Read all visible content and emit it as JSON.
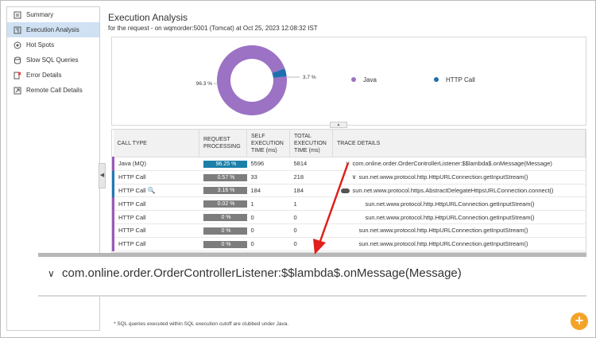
{
  "sidebar": {
    "items": [
      {
        "label": "Summary",
        "icon": "summary-icon",
        "active": false
      },
      {
        "label": "Execution Analysis",
        "icon": "execution-analysis-icon",
        "active": true
      },
      {
        "label": "Hot Spots",
        "icon": "hot-spots-icon",
        "active": false
      },
      {
        "label": "Slow SQL Queries",
        "icon": "database-icon",
        "active": false
      },
      {
        "label": "Error Details",
        "icon": "error-icon",
        "active": false
      },
      {
        "label": "Remote Call Details",
        "icon": "remote-call-icon",
        "active": false
      }
    ]
  },
  "header": {
    "title": "Execution Analysis",
    "subtitle": "for the request - on wqmorder:5001 (Tomcat) at Oct 25, 2023 12:08:32 IST"
  },
  "chart_data": {
    "type": "pie",
    "categories": [
      "Java",
      "HTTP Call"
    ],
    "values": [
      96.3,
      3.7
    ],
    "labels": [
      "96.3 %",
      "3.7 %"
    ],
    "colors": [
      "#9b72c4",
      "#1f6fae"
    ],
    "legend_position": "right"
  },
  "table": {
    "headers": [
      "CALL TYPE",
      "REQUEST PROCESSING",
      "SELF EXECUTION TIME (ms)",
      "TOTAL EXECUTION TIME (ms)",
      "TRACE DETAILS"
    ],
    "rows": [
      {
        "call_type": "Java (MQ)",
        "percent": "96.25 %",
        "self": "5596",
        "total": "5814",
        "trace": "com.online.order.OrderControllerListener:$$lambda$.onMessage(Message)",
        "indent": 0,
        "marker": "chevron"
      },
      {
        "call_type": "HTTP Call",
        "percent": "0.57 %",
        "self": "33",
        "total": "218",
        "trace": "sun.net.www.protocol.http.HttpURLConnection.getInputStream()",
        "indent": 1,
        "marker": "chevron"
      },
      {
        "call_type": "HTTP Call",
        "percent": "3.16 %",
        "self": "184",
        "total": "184",
        "trace": "sun.net.www.protocol.https.AbstractDelegateHttpsURLConnection.connect()",
        "indent": 0,
        "marker": "cloud"
      },
      {
        "call_type": "HTTP Call",
        "percent": "0.02 %",
        "self": "1",
        "total": "1",
        "trace": "sun.net.www.protocol.http.HttpURLConnection.getInputStream()",
        "indent": 2,
        "marker": "none"
      },
      {
        "call_type": "HTTP Call",
        "percent": "0 %",
        "self": "0",
        "total": "0",
        "trace": "sun.net.www.protocol.http.HttpURLConnection.getInputStream()",
        "indent": 2,
        "marker": "none"
      },
      {
        "call_type": "HTTP Call",
        "percent": "0 %",
        "self": "0",
        "total": "0",
        "trace": "sun.net.www.protocol.http.HttpURLConnection.getInputStream()",
        "indent": 1,
        "marker": "none"
      },
      {
        "call_type": "HTTP Call",
        "percent": "0 %",
        "self": "0",
        "total": "0",
        "trace": "sun.net.www.protocol.http.HttpURLConnection.getInputStream()",
        "indent": 1,
        "marker": "none"
      }
    ]
  },
  "zoom": {
    "text": "com.online.order.OrderControllerListener:$$lambda$.onMessage(Message)"
  },
  "footnote": "* SQL queries executed within SQL execution cutoff are clubbed under Java.",
  "zoom_button": "+"
}
